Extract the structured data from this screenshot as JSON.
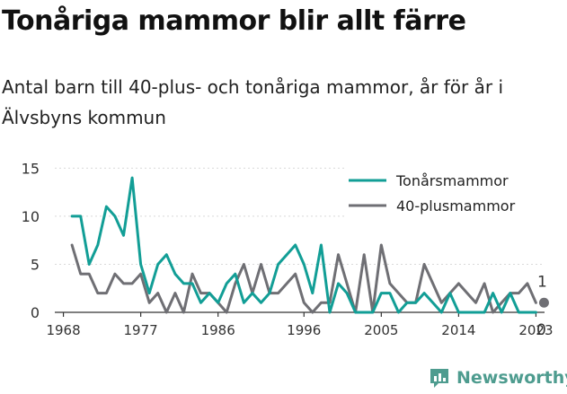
{
  "header": {
    "title": "Tonåriga mammor blir allt färre",
    "subtitle": "Antal barn till 40-plus- och tonåriga mammor, år för år i Älvsbyns kommun"
  },
  "branding": {
    "name": "Newsworthy",
    "logo_icon": "bar-chart-speech-bubble-icon",
    "color": "#4e9c8f"
  },
  "chart_data": {
    "type": "line",
    "x": [
      1969,
      1970,
      1971,
      1972,
      1973,
      1974,
      1975,
      1976,
      1977,
      1978,
      1979,
      1980,
      1981,
      1982,
      1983,
      1984,
      1985,
      1986,
      1987,
      1988,
      1989,
      1990,
      1991,
      1992,
      1993,
      1994,
      1995,
      1996,
      1997,
      1998,
      1999,
      2000,
      2001,
      2002,
      2003,
      2004,
      2005,
      2006,
      2007,
      2008,
      2009,
      2010,
      2011,
      2012,
      2013,
      2014,
      2015,
      2016,
      2017,
      2018,
      2019,
      2020,
      2021,
      2022,
      2023
    ],
    "series": [
      {
        "name": "Tonårsmammor",
        "color": "#129e96",
        "values": [
          10,
          10,
          5,
          7,
          11,
          10,
          8,
          14,
          5,
          2,
          5,
          6,
          4,
          3,
          3,
          1,
          2,
          1,
          3,
          4,
          1,
          2,
          1,
          2,
          5,
          6,
          7,
          5,
          2,
          7,
          0,
          3,
          2,
          0,
          0,
          0,
          2,
          2,
          0,
          1,
          1,
          2,
          1,
          0,
          2,
          0,
          0,
          0,
          0,
          2,
          0,
          2,
          0,
          0,
          0
        ]
      },
      {
        "name": "40-plusmammor",
        "color": "#6f6f74",
        "values": [
          7,
          4,
          4,
          2,
          2,
          4,
          3,
          3,
          4,
          1,
          2,
          0,
          2,
          0,
          4,
          2,
          2,
          1,
          0,
          3,
          5,
          2,
          5,
          2,
          2,
          3,
          4,
          1,
          0,
          1,
          1,
          6,
          3,
          0,
          6,
          0,
          7,
          3,
          2,
          1,
          1,
          5,
          3,
          1,
          2,
          3,
          2,
          1,
          3,
          0,
          1,
          2,
          2,
          3,
          1
        ]
      }
    ],
    "end_labels": {
      "series_40plus": "1",
      "series_teen": "0"
    },
    "xticks": [
      1968,
      1977,
      1986,
      1996,
      2005,
      2014,
      2023
    ],
    "yticks": [
      0,
      5,
      10,
      15
    ],
    "xlim": [
      1967,
      2024
    ],
    "ylim": [
      0,
      15.5
    ],
    "grid": "horizontal",
    "legend": "top-right",
    "xlabel": "",
    "ylabel": ""
  }
}
